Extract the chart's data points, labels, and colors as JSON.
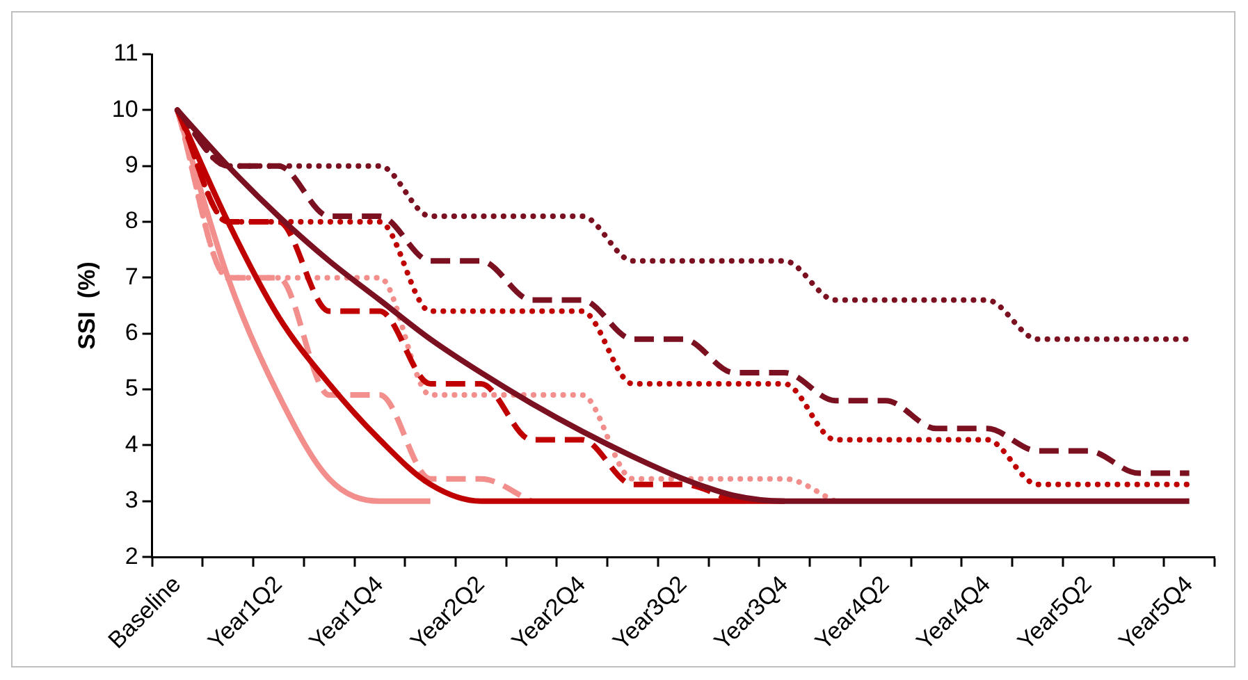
{
  "chart_data": {
    "type": "line",
    "ylabel": "SSI  (%)",
    "categories": [
      "Baseline",
      null,
      "Year1Q2",
      null,
      "Year1Q4",
      null,
      "Year2Q2",
      null,
      "Year2Q4",
      null,
      "Year3Q2",
      null,
      "Year3Q4",
      null,
      "Year4Q2",
      null,
      "Year4Q4",
      null,
      "Year5Q2",
      null,
      "Year5Q4"
    ],
    "ylim": [
      2,
      11
    ],
    "yticks": [
      2,
      3,
      4,
      5,
      6,
      7,
      8,
      9,
      10,
      11
    ],
    "grid": false,
    "legend": false,
    "marker": "none",
    "series": [
      {
        "color": "#f28e8c",
        "line_style": "solid",
        "values": [
          10,
          7,
          4.9,
          3.4,
          3,
          3,
          null,
          null,
          null,
          null,
          null,
          null,
          null,
          null,
          null,
          null,
          null,
          null,
          null,
          null,
          null
        ]
      },
      {
        "color": "#f28e8c",
        "line_style": "dashed",
        "values": [
          10,
          7,
          7,
          4.9,
          4.9,
          3.4,
          3.4,
          3,
          null,
          null,
          null,
          null,
          null,
          null,
          null,
          null,
          null,
          null,
          null,
          null,
          null
        ]
      },
      {
        "color": "#f28e8c",
        "line_style": "dotted",
        "values": [
          10,
          7,
          7,
          7,
          7,
          4.9,
          4.9,
          4.9,
          4.9,
          3.4,
          3.4,
          3.4,
          3.4,
          3,
          null,
          null,
          null,
          null,
          null,
          null,
          null
        ]
      },
      {
        "color": "#c00000",
        "line_style": "solid",
        "values": [
          10,
          8,
          6.3,
          5.1,
          4.1,
          3.3,
          3,
          3,
          3,
          3,
          3,
          3,
          3,
          null,
          null,
          null,
          null,
          null,
          null,
          null,
          null
        ]
      },
      {
        "color": "#c00000",
        "line_style": "dashed",
        "values": [
          10,
          8,
          8,
          6.4,
          6.4,
          5.1,
          5.1,
          4.1,
          4.1,
          3.3,
          3.3,
          3,
          null,
          null,
          null,
          null,
          null,
          null,
          null,
          null,
          null
        ]
      },
      {
        "color": "#c00000",
        "line_style": "dotted",
        "values": [
          10,
          8,
          8,
          8,
          8,
          6.4,
          6.4,
          6.4,
          6.4,
          5.1,
          5.1,
          5.1,
          5.1,
          4.1,
          4.1,
          4.1,
          4.1,
          3.3,
          3.3,
          3.3,
          3.3
        ]
      },
      {
        "color": "#7b1020",
        "line_style": "solid",
        "values": [
          10,
          9,
          8.1,
          7.3,
          6.6,
          5.9,
          5.3,
          4.75,
          4.25,
          3.8,
          3.4,
          3.1,
          3,
          3,
          3,
          3,
          3,
          3,
          3,
          3,
          3
        ]
      },
      {
        "color": "#7b1020",
        "line_style": "dashed",
        "values": [
          10,
          9,
          9,
          8.1,
          8.1,
          7.3,
          7.3,
          6.6,
          6.6,
          5.9,
          5.9,
          5.3,
          5.3,
          4.8,
          4.8,
          4.3,
          4.3,
          3.9,
          3.9,
          3.5,
          3.5
        ]
      },
      {
        "color": "#7b1020",
        "line_style": "dotted",
        "values": [
          10,
          9,
          9,
          9,
          9,
          8.1,
          8.1,
          8.1,
          8.1,
          7.3,
          7.3,
          7.3,
          7.3,
          6.6,
          6.6,
          6.6,
          6.6,
          5.9,
          5.9,
          5.9,
          5.9
        ]
      }
    ]
  }
}
